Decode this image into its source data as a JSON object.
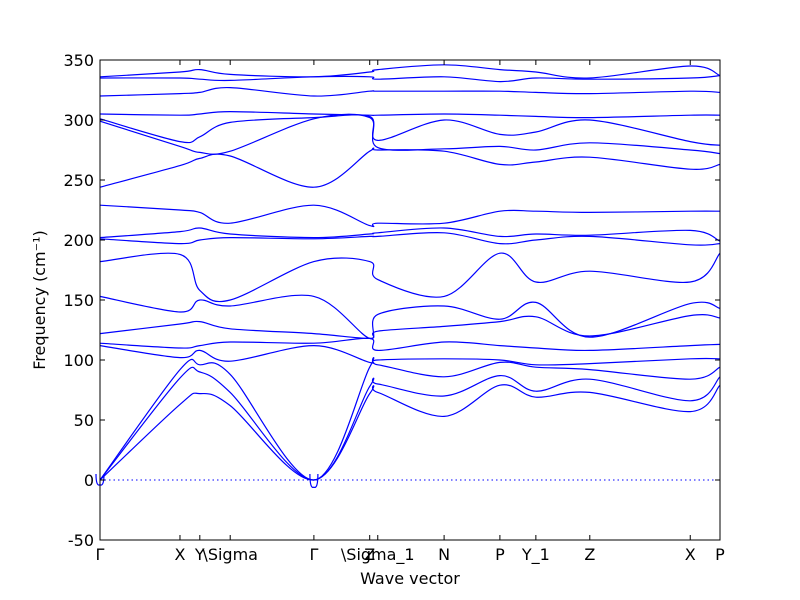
{
  "chart_data": {
    "type": "line",
    "xlabel": "Wave vector",
    "ylabel": "Frequency (cm⁻¹)",
    "ylim": [
      -50,
      350
    ],
    "xlim": [
      0,
      1
    ],
    "y_ticks": [
      -50,
      0,
      50,
      100,
      150,
      200,
      250,
      300,
      350
    ],
    "x_ticks": [
      {
        "label": "Γ",
        "x": 0.0
      },
      {
        "label": "X",
        "x": 0.129
      },
      {
        "label": "Y",
        "x": 0.161
      },
      {
        "label": "\\Sigma",
        "x": 0.21
      },
      {
        "label": "Γ",
        "x": 0.345
      },
      {
        "label": "Z",
        "x": 0.435
      },
      {
        "label": "\\Sigma_1",
        "x": 0.448
      },
      {
        "label": "N",
        "x": 0.555
      },
      {
        "label": "P",
        "x": 0.645
      },
      {
        "label": "Y_1",
        "x": 0.703
      },
      {
        "label": "Z",
        "x": 0.79
      },
      {
        "label": "X",
        "x": 0.952
      },
      {
        "label": "P",
        "x": 1.0
      }
    ],
    "zero_line": true,
    "bands_x": [
      0.0,
      0.129,
      0.161,
      0.21,
      0.345,
      0.435,
      0.448,
      0.555,
      0.645,
      0.703,
      0.79,
      0.952,
      1.0
    ],
    "series": [
      {
        "values": [
          0,
          63,
          72,
          62,
          0,
          72,
          73,
          53,
          79,
          69,
          73,
          57,
          79
        ]
      },
      {
        "values": [
          0,
          85,
          90,
          73,
          0,
          78,
          80,
          70,
          87,
          74,
          84,
          66,
          86
        ]
      },
      {
        "values": [
          0,
          92,
          96,
          88,
          0,
          94,
          96,
          86,
          98,
          94,
          92,
          84,
          94
        ]
      },
      {
        "values": [
          112,
          102,
          108,
          99,
          112,
          98,
          100,
          101,
          100,
          96,
          97,
          101,
          101
        ]
      },
      {
        "values": [
          114,
          110,
          112,
          115,
          114,
          118,
          108,
          115,
          112,
          110,
          108,
          112,
          113
        ]
      },
      {
        "values": [
          122,
          130,
          132,
          126,
          122,
          118,
          124,
          128,
          132,
          136,
          120,
          137,
          135
        ]
      },
      {
        "values": [
          153,
          140,
          150,
          145,
          153,
          118,
          138,
          145,
          134,
          148,
          119,
          147,
          143
        ]
      },
      {
        "values": [
          182,
          188,
          158,
          150,
          182,
          182,
          167,
          153,
          189,
          165,
          174,
          165,
          189
        ]
      },
      {
        "values": [
          201,
          197,
          200,
          202,
          201,
          203,
          203,
          206,
          197,
          200,
          203,
          196,
          197
        ]
      },
      {
        "values": [
          202,
          207,
          210,
          205,
          202,
          205,
          206,
          210,
          203,
          205,
          204,
          208,
          199
        ]
      },
      {
        "values": [
          229,
          225,
          223,
          214,
          229,
          212,
          214,
          214,
          224,
          224,
          223,
          224,
          224
        ]
      },
      {
        "values": [
          244,
          262,
          268,
          270,
          244,
          274,
          275,
          274,
          263,
          265,
          269,
          259,
          263
        ]
      },
      {
        "values": [
          299,
          278,
          273,
          274,
          301,
          302,
          277,
          276,
          278,
          275,
          281,
          275,
          272
        ]
      },
      {
        "values": [
          301,
          282,
          286,
          298,
          302,
          303,
          283,
          300,
          288,
          290,
          300,
          282,
          279
        ]
      },
      {
        "values": [
          305,
          304,
          305,
          307,
          305,
          304,
          304,
          305,
          304,
          303,
          302,
          304,
          304
        ]
      },
      {
        "values": [
          320,
          322,
          323,
          327,
          320,
          324,
          324,
          324,
          324,
          323,
          322,
          324,
          323
        ]
      },
      {
        "values": [
          335,
          335,
          334,
          333,
          336,
          336,
          334,
          336,
          332,
          335,
          334,
          335,
          337
        ]
      },
      {
        "values": [
          336,
          340,
          342,
          338,
          336,
          340,
          342,
          346,
          342,
          340,
          335,
          345,
          337
        ]
      }
    ],
    "acoustic_dips": [
      {
        "x": 0.0,
        "min": -4
      },
      {
        "x": 0.345,
        "min": -6
      }
    ]
  }
}
